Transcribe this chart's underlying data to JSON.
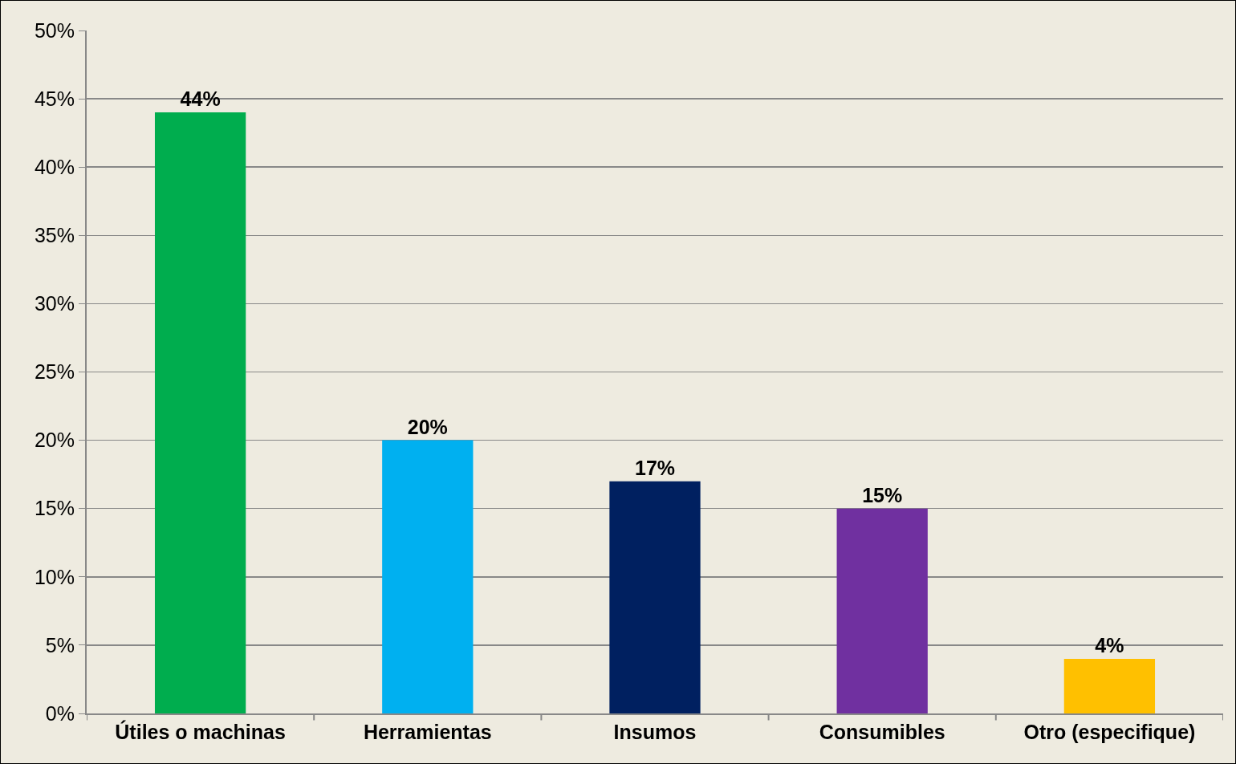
{
  "chart_data": {
    "type": "bar",
    "categories": [
      "Útiles o machinas",
      "Herramientas",
      "Insumos",
      "Consumibles",
      "Otro (especifique)"
    ],
    "values": [
      44,
      20,
      17,
      15,
      4
    ],
    "colors": [
      "#00ad4e",
      "#00b0f0",
      "#002060",
      "#7030a0",
      "#ffc000"
    ],
    "value_labels": [
      "44%",
      "20%",
      "17%",
      "15%",
      "4%"
    ],
    "ylim": [
      0,
      50
    ],
    "yticks": [
      {
        "value": 0,
        "label": "0%"
      },
      {
        "value": 5,
        "label": "5%"
      },
      {
        "value": 10,
        "label": "10%"
      },
      {
        "value": 15,
        "label": "15%"
      },
      {
        "value": 20,
        "label": "20%"
      },
      {
        "value": 25,
        "label": "25%"
      },
      {
        "value": 30,
        "label": "30%"
      },
      {
        "value": 35,
        "label": "35%"
      },
      {
        "value": 40,
        "label": "40%"
      },
      {
        "value": 45,
        "label": "45%"
      },
      {
        "value": 50,
        "label": "50%"
      }
    ],
    "grid": "y"
  }
}
